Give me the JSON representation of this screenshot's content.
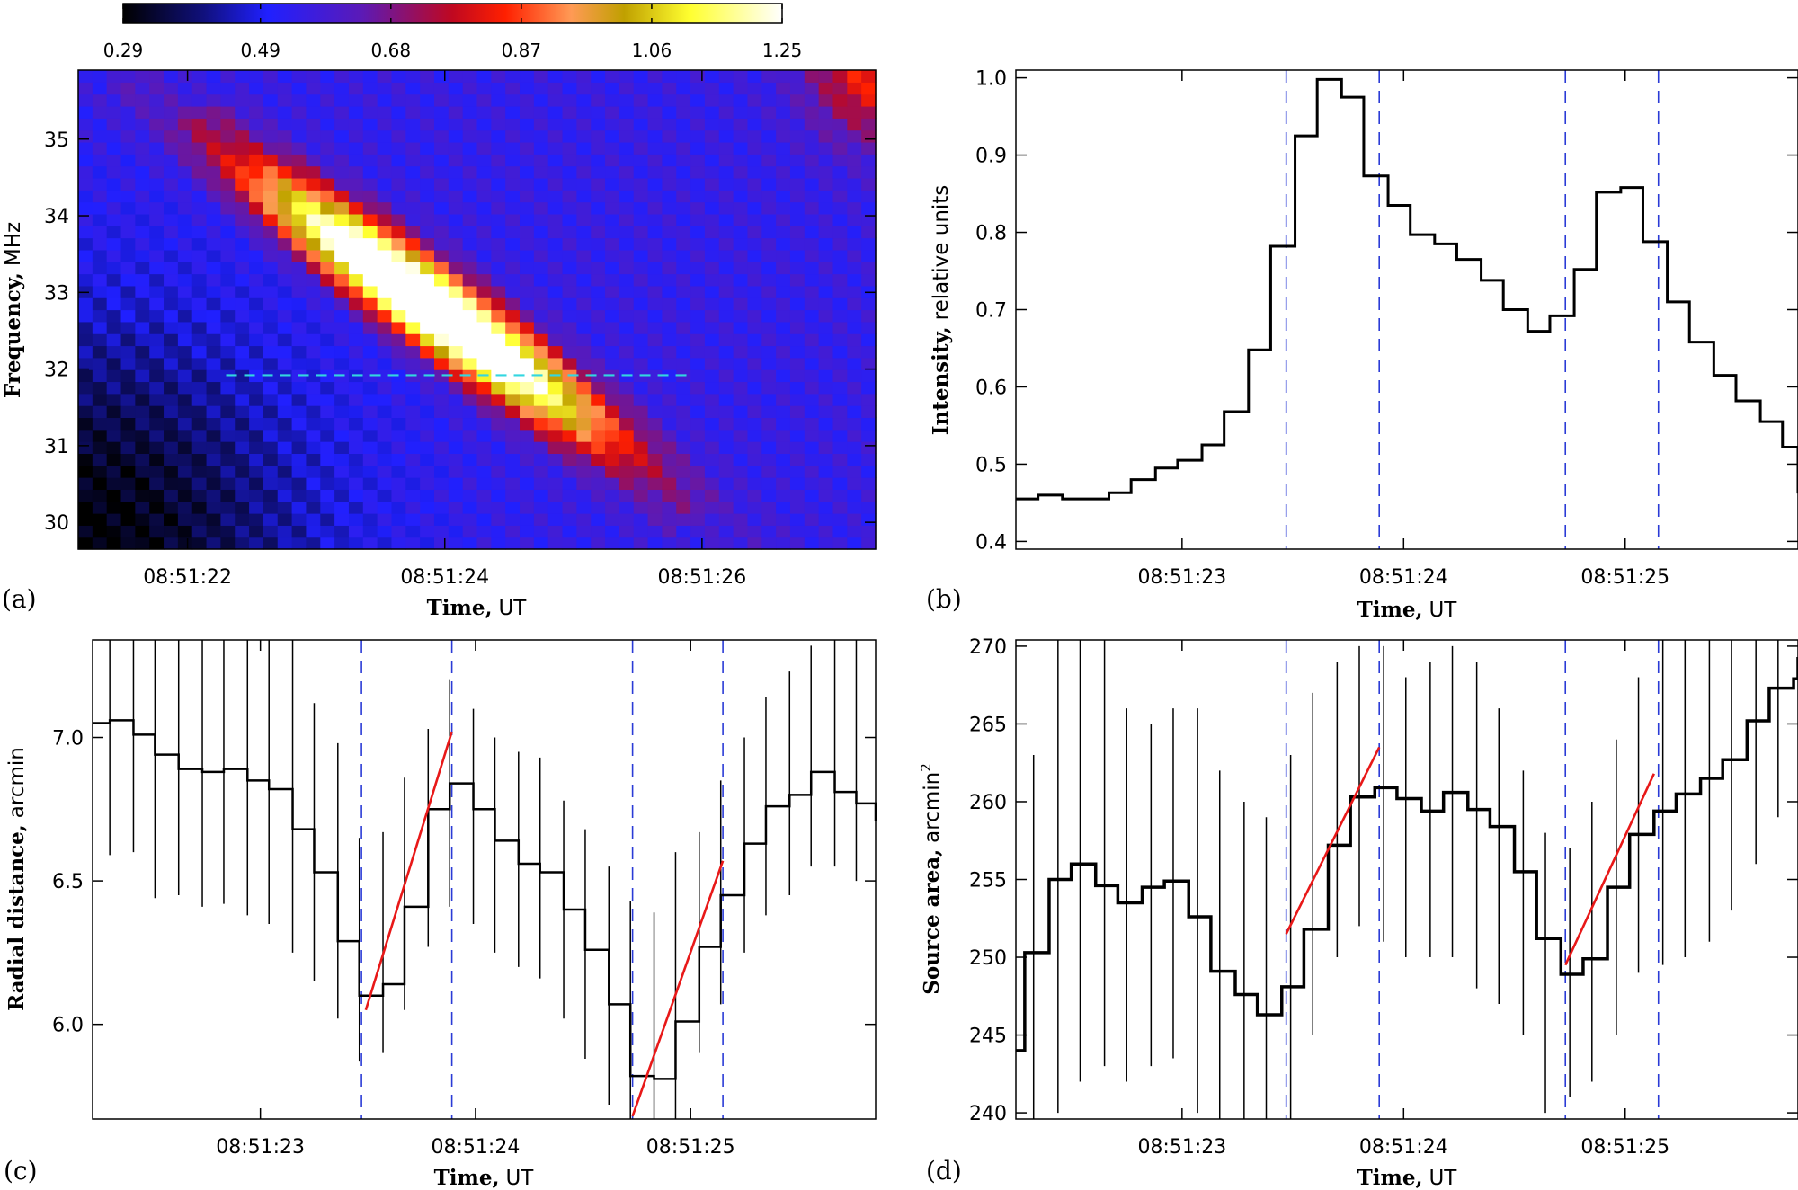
{
  "chart_data": [
    {
      "panel": "a",
      "type": "heatmap",
      "panel_label": "(a)",
      "xlabel_bold": "Time,",
      "xlabel_unit": "UT",
      "ylabel_bold": "Frequency,",
      "ylabel_unit": "MHz",
      "xlim": [
        21.15,
        27.35
      ],
      "ylim": [
        29.65,
        35.9
      ],
      "x_ticks": [
        22,
        24,
        26
      ],
      "x_tick_labels": [
        "08:51:22",
        "08:51:24",
        "08:51:26"
      ],
      "y_ticks": [
        30,
        31,
        32,
        33,
        34,
        35
      ],
      "y_tick_labels": [
        "30",
        "31",
        "32",
        "33",
        "34",
        "35"
      ],
      "colorbar": {
        "range": [
          0.29,
          1.25
        ],
        "ticks": [
          0.29,
          0.49,
          0.68,
          0.87,
          1.06,
          1.25
        ],
        "tick_labels": [
          "0.29",
          "0.49",
          "0.68",
          "0.87",
          "1.06",
          "1.25"
        ]
      },
      "burst_ridges": [
        {
          "x_start": 21.8,
          "y_start": 35.4,
          "x_end": 25.6,
          "y_end": 30.4,
          "peak": 1.22
        },
        {
          "x_start": 22.4,
          "y_start": 35.0,
          "x_end": 26.2,
          "y_end": 30.0,
          "peak": 1.1
        }
      ],
      "background_level": 0.55,
      "reference_line": {
        "y": 31.92,
        "x_start": 22.3,
        "x_end": 25.9,
        "color": "#33d6e0"
      }
    },
    {
      "panel": "b",
      "type": "line",
      "step": true,
      "panel_label": "(b)",
      "xlabel_bold": "Time,",
      "xlabel_unit": "UT",
      "ylabel_bold": "Intensity,",
      "ylabel_unit": "relative units",
      "xlim": [
        22.25,
        25.78
      ],
      "ylim": [
        0.39,
        1.01
      ],
      "x_ticks": [
        23,
        24,
        25
      ],
      "x_tick_labels": [
        "08:51:23",
        "08:51:24",
        "08:51:25"
      ],
      "y_ticks": [
        0.4,
        0.5,
        0.6,
        0.7,
        0.8,
        0.9,
        1.0
      ],
      "y_tick_labels": [
        "0.4",
        "0.5",
        "0.6",
        "0.7",
        "0.8",
        "0.9",
        "1.0"
      ],
      "vlines": [
        23.47,
        23.89,
        24.73,
        25.15
      ],
      "series": [
        {
          "name": "Intensity",
          "x": [
            22.25,
            22.35,
            22.46,
            22.56,
            22.67,
            22.77,
            22.88,
            22.98,
            23.09,
            23.19,
            23.3,
            23.4,
            23.51,
            23.61,
            23.72,
            23.82,
            23.93,
            24.03,
            24.14,
            24.24,
            24.35,
            24.45,
            24.56,
            24.66,
            24.77,
            24.87,
            24.98,
            25.08,
            25.19,
            25.29,
            25.4,
            25.5,
            25.61,
            25.71
          ],
          "y": [
            0.455,
            0.46,
            0.455,
            0.455,
            0.463,
            0.48,
            0.495,
            0.505,
            0.525,
            0.568,
            0.648,
            0.782,
            0.925,
            0.998,
            0.975,
            0.873,
            0.835,
            0.797,
            0.785,
            0.765,
            0.738,
            0.7,
            0.672,
            0.692,
            0.752,
            0.852,
            0.858,
            0.788,
            0.71,
            0.658,
            0.615,
            0.582,
            0.555,
            0.522
          ],
          "end_y": 0.462
        }
      ]
    },
    {
      "panel": "c",
      "type": "line",
      "step": true,
      "panel_label": "(c)",
      "xlabel_bold": "Time,",
      "xlabel_unit": "UT",
      "ylabel_bold": "Radial distance,",
      "ylabel_unit": "arcmin",
      "xlim": [
        22.22,
        25.86
      ],
      "ylim": [
        5.67,
        7.34
      ],
      "x_ticks": [
        23,
        24,
        25
      ],
      "x_tick_labels": [
        "08:51:23",
        "08:51:24",
        "08:51:25"
      ],
      "y_ticks": [
        6.0,
        6.5,
        7.0
      ],
      "y_tick_labels": [
        "6.0",
        "6.5",
        "7.0"
      ],
      "vlines": [
        23.47,
        23.89,
        24.73,
        25.15
      ],
      "error_bars": [
        [
          22.3,
          6.59,
          7.34
        ],
        [
          22.41,
          6.6,
          7.34
        ],
        [
          22.51,
          6.44,
          7.34
        ],
        [
          22.62,
          6.45,
          7.34
        ],
        [
          22.73,
          6.41,
          7.34
        ],
        [
          22.83,
          6.42,
          7.34
        ],
        [
          22.94,
          6.38,
          7.34
        ],
        [
          23.04,
          6.35,
          7.34
        ],
        [
          23.15,
          6.25,
          7.34
        ],
        [
          23.25,
          6.15,
          7.12
        ],
        [
          23.36,
          6.02,
          6.98
        ],
        [
          23.46,
          5.87,
          6.65
        ],
        [
          23.57,
          5.9,
          6.67
        ],
        [
          23.67,
          6.05,
          6.86
        ],
        [
          23.78,
          6.27,
          7.03
        ],
        [
          23.88,
          6.41,
          7.2
        ],
        [
          23.99,
          6.35,
          7.1
        ],
        [
          24.09,
          6.25,
          7.0
        ],
        [
          24.2,
          6.2,
          6.95
        ],
        [
          24.3,
          6.16,
          6.93
        ],
        [
          24.41,
          6.02,
          6.78
        ],
        [
          24.51,
          5.88,
          6.68
        ],
        [
          24.62,
          5.72,
          6.55
        ],
        [
          24.72,
          5.62,
          6.43
        ],
        [
          24.83,
          5.58,
          6.39
        ],
        [
          24.93,
          5.65,
          6.6
        ],
        [
          25.04,
          5.9,
          6.67
        ],
        [
          25.14,
          6.07,
          6.85
        ],
        [
          25.25,
          6.25,
          7.0
        ],
        [
          25.35,
          6.38,
          7.14
        ],
        [
          25.46,
          6.45,
          7.23
        ],
        [
          25.56,
          6.55,
          7.32
        ],
        [
          25.67,
          6.55,
          7.34
        ],
        [
          25.77,
          6.5,
          7.34
        ]
      ],
      "fit_lines": [
        {
          "x0": 23.49,
          "y0": 6.05,
          "x1": 23.89,
          "y1": 7.02,
          "color": "#e81818"
        },
        {
          "x0": 24.73,
          "y0": 5.68,
          "x1": 25.15,
          "y1": 6.57,
          "color": "#e81818"
        }
      ],
      "series": [
        {
          "name": "Radial distance",
          "x": [
            22.22,
            22.3,
            22.41,
            22.51,
            22.62,
            22.73,
            22.83,
            22.94,
            23.04,
            23.15,
            23.25,
            23.36,
            23.46,
            23.57,
            23.67,
            23.78,
            23.88,
            23.99,
            24.09,
            24.2,
            24.3,
            24.41,
            24.51,
            24.62,
            24.72,
            24.83,
            24.93,
            25.04,
            25.14,
            25.25,
            25.35,
            25.46,
            25.56,
            25.67,
            25.77
          ],
          "y": [
            7.05,
            7.06,
            7.01,
            6.94,
            6.89,
            6.88,
            6.89,
            6.85,
            6.82,
            6.68,
            6.53,
            6.29,
            6.1,
            6.14,
            6.41,
            6.75,
            6.84,
            6.75,
            6.64,
            6.56,
            6.53,
            6.4,
            6.26,
            6.07,
            5.82,
            5.81,
            6.01,
            6.27,
            6.45,
            6.63,
            6.76,
            6.8,
            6.88,
            6.81,
            6.77
          ],
          "end_y": 6.71
        }
      ]
    },
    {
      "panel": "d",
      "type": "line",
      "step": true,
      "panel_label": "(d)",
      "xlabel_bold": "Time,",
      "xlabel_unit": "UT",
      "ylabel_bold": "Source area,",
      "ylabel_unit": "arcmin",
      "ylabel_sup": "2",
      "xlim": [
        22.25,
        25.78
      ],
      "ylim": [
        239.6,
        270.4
      ],
      "x_ticks": [
        23,
        24,
        25
      ],
      "x_tick_labels": [
        "08:51:23",
        "08:51:24",
        "08:51:25"
      ],
      "y_ticks": [
        240,
        245,
        250,
        255,
        260,
        265,
        270
      ],
      "y_tick_labels": [
        "240",
        "245",
        "250",
        "255",
        "260",
        "265",
        "270"
      ],
      "vlines": [
        23.47,
        23.89,
        24.73,
        25.15
      ],
      "error_bars": [
        [
          22.33,
          237.0,
          263.0
        ],
        [
          22.44,
          240.0,
          270.5
        ],
        [
          22.54,
          242.0,
          270.5
        ],
        [
          22.65,
          243.0,
          270.5
        ],
        [
          22.75,
          242.0,
          266.0
        ],
        [
          22.86,
          243.0,
          265.0
        ],
        [
          22.96,
          243.5,
          266.0
        ],
        [
          23.07,
          240.0,
          266.0
        ],
        [
          23.17,
          238.0,
          262.0
        ],
        [
          23.28,
          236.5,
          260.0
        ],
        [
          23.38,
          235.0,
          259.0
        ],
        [
          23.49,
          239.0,
          263.0
        ],
        [
          23.59,
          245.0,
          267.0
        ],
        [
          23.7,
          250.0,
          269.0
        ],
        [
          23.8,
          252.0,
          270.0
        ],
        [
          23.91,
          251.0,
          270.0
        ],
        [
          24.01,
          250.0,
          268.0
        ],
        [
          24.12,
          250.0,
          269.0
        ],
        [
          24.22,
          250.0,
          270.0
        ],
        [
          24.33,
          248.0,
          269.0
        ],
        [
          24.43,
          247.0,
          266.0
        ],
        [
          24.54,
          245.0,
          262.0
        ],
        [
          24.64,
          240.0,
          258.0
        ],
        [
          24.75,
          241.0,
          257.0
        ],
        [
          24.85,
          242.0,
          260.0
        ],
        [
          24.96,
          245.0,
          264.0
        ],
        [
          25.06,
          249.0,
          268.0
        ],
        [
          25.17,
          249.5,
          270.5
        ],
        [
          25.27,
          250.0,
          270.5
        ],
        [
          25.38,
          251.0,
          270.5
        ],
        [
          25.48,
          253.0,
          270.5
        ],
        [
          25.59,
          256.0,
          270.5
        ],
        [
          25.69,
          259.0,
          270.5
        ]
      ],
      "fit_lines": [
        {
          "x0": 23.47,
          "y0": 251.5,
          "x1": 23.89,
          "y1": 263.5,
          "color": "#e81818"
        },
        {
          "x0": 24.73,
          "y0": 249.5,
          "x1": 25.13,
          "y1": 261.8,
          "color": "#e81818"
        }
      ],
      "series": [
        {
          "name": "Source area",
          "x": [
            22.25,
            22.29,
            22.4,
            22.5,
            22.61,
            22.71,
            22.82,
            22.92,
            23.03,
            23.13,
            23.24,
            23.34,
            23.45,
            23.55,
            23.66,
            23.76,
            23.87,
            23.97,
            24.08,
            24.18,
            24.29,
            24.39,
            24.5,
            24.6,
            24.71,
            24.81,
            24.92,
            25.02,
            25.13,
            25.23,
            25.34,
            25.44,
            25.55,
            25.65,
            25.76
          ],
          "y": [
            244.0,
            250.3,
            255.0,
            256.0,
            254.6,
            253.5,
            254.5,
            254.9,
            252.6,
            249.1,
            247.6,
            246.3,
            248.1,
            251.8,
            257.2,
            260.3,
            260.9,
            260.2,
            259.4,
            260.6,
            259.5,
            258.4,
            255.5,
            251.2,
            248.9,
            249.9,
            254.5,
            257.9,
            259.4,
            260.5,
            261.5,
            262.7,
            265.2,
            267.3,
            267.9
          ],
          "end_y": 269.3
        }
      ]
    }
  ]
}
